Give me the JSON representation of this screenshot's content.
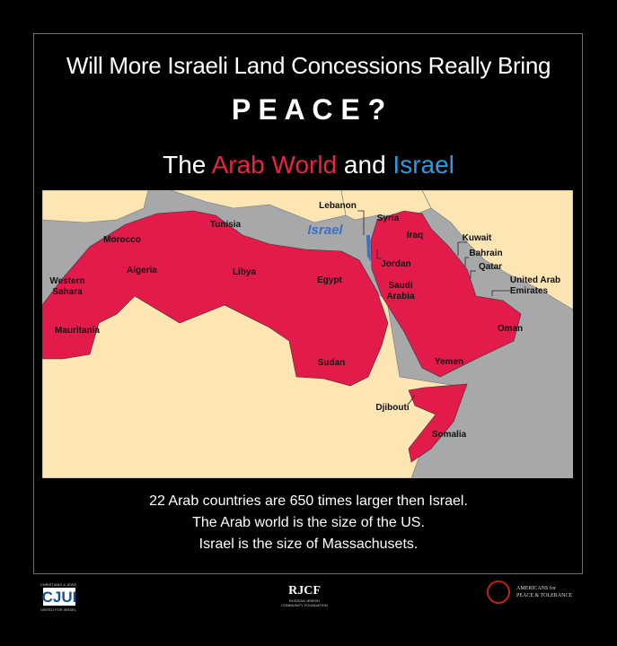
{
  "header": {
    "title": "Will More Israeli Land Concessions Really Bring",
    "emphasis": "P E A C E ?",
    "subtitle": [
      "The ",
      "Arab World",
      " and ",
      "Israel"
    ]
  },
  "map": {
    "labels": [
      [
        "Morocco"
      ],
      [
        "Tunisia"
      ],
      [
        "Algeria"
      ],
      [
        "Libya"
      ],
      [
        "Western",
        "Sahara"
      ],
      [
        "Mauritania"
      ],
      [
        "Egypt"
      ],
      [
        "Sudan"
      ],
      [
        "Lebanon"
      ],
      [
        "Syria"
      ],
      [
        "Israel"
      ],
      [
        "Iraq"
      ],
      [
        "Jordan"
      ],
      [
        "Saudi",
        "Arabia"
      ],
      [
        "Kuwait"
      ],
      [
        "Bahrain"
      ],
      [
        "Qatar"
      ],
      [
        "United Arab",
        "Emirates"
      ],
      [
        "Oman"
      ],
      [
        "Yemen"
      ],
      [
        "Djibouti"
      ],
      [
        "Somalia"
      ]
    ]
  },
  "caption": [
    "22 Arab countries are 650 times larger then Israel.",
    "The Arab world is the size of the US.",
    "Israel is the size of Massachusets."
  ],
  "footer": {
    "left": {
      "top": "CHRISTIANS & JEWS",
      "mark": "CJUI",
      "bottom": "UNITED FOR ISRAEL"
    },
    "center": {
      "mark": "RJCF",
      "line1": "RUSSIAN JEWISH",
      "line2": "COMMUNITY FOUNDATION"
    },
    "right": {
      "line1": "AMERICANS for",
      "line2": "PEACE & TOLERANCE"
    }
  }
}
